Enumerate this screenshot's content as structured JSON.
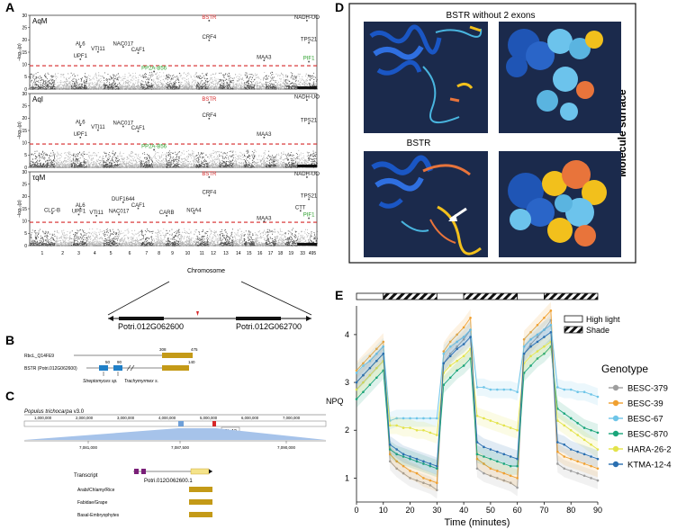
{
  "panels": {
    "A": {
      "letter": "A",
      "subplots": [
        {
          "label": "AqM",
          "ylabel": "–log₁₀(p)",
          "ylim": [
            0,
            30
          ],
          "threshold": 9.5,
          "genes": [
            {
              "name": "BSTR",
              "x": 11.1,
              "y": 28.5,
              "color": "#d62728"
            },
            {
              "name": "NADH-UO",
              "x": 19.9,
              "y": 28.5,
              "color": "#222"
            },
            {
              "name": "CRF4",
              "x": 11.1,
              "y": 20.5,
              "color": "#222"
            },
            {
              "name": "TPS21",
              "x": 20.1,
              "y": 19.5,
              "color": "#222"
            },
            {
              "name": "AL6",
              "x": 2.6,
              "y": 17.8,
              "color": "#222"
            },
            {
              "name": "VTI11",
              "x": 3.7,
              "y": 15.8,
              "color": "#222"
            },
            {
              "name": "NAC017",
              "x": 5.2,
              "y": 17.8,
              "color": "#222"
            },
            {
              "name": "CAF1",
              "x": 5.9,
              "y": 15.3,
              "color": "#222"
            },
            {
              "name": "UPF1",
              "x": 2.6,
              "y": 12.8,
              "color": "#222"
            },
            {
              "name": "MAA3",
              "x": 15.9,
              "y": 12.3,
              "color": "#222"
            },
            {
              "name": "PIF1",
              "x": 20.1,
              "y": 11.8,
              "color": "#2ca02c"
            },
            {
              "name": "PP2A-B56",
              "x": 7.1,
              "y": 7.8,
              "color": "#2ca02c"
            }
          ]
        },
        {
          "label": "AqI",
          "ylabel": "–log₁₀(p)",
          "ylim": [
            0,
            30
          ],
          "threshold": 9.5,
          "genes": [
            {
              "name": "BSTR",
              "x": 11.1,
              "y": 27.0,
              "color": "#d62728"
            },
            {
              "name": "NADH-UO",
              "x": 19.9,
              "y": 28.0,
              "color": "#222"
            },
            {
              "name": "CRF4",
              "x": 11.1,
              "y": 20.5,
              "color": "#222"
            },
            {
              "name": "TPS21",
              "x": 20.1,
              "y": 18.5,
              "color": "#222"
            },
            {
              "name": "AL6",
              "x": 2.6,
              "y": 17.8,
              "color": "#222"
            },
            {
              "name": "VTI11",
              "x": 3.7,
              "y": 15.8,
              "color": "#222"
            },
            {
              "name": "NAC017",
              "x": 5.2,
              "y": 17.3,
              "color": "#222"
            },
            {
              "name": "CAF1",
              "x": 5.9,
              "y": 15.3,
              "color": "#222"
            },
            {
              "name": "UPF1",
              "x": 2.6,
              "y": 12.8,
              "color": "#222"
            },
            {
              "name": "MAA3",
              "x": 15.9,
              "y": 12.8,
              "color": "#222"
            },
            {
              "name": "PP2A-B56",
              "x": 7.1,
              "y": 7.8,
              "color": "#2ca02c"
            }
          ]
        },
        {
          "label": "τqM",
          "ylabel": "–log₁₀(p)",
          "ylim": [
            0,
            30
          ],
          "threshold": 9.5,
          "genes": [
            {
              "name": "BSTR",
              "x": 11.1,
              "y": 28.5,
              "color": "#d62728"
            },
            {
              "name": "NADH-UO",
              "x": 19.9,
              "y": 28.5,
              "color": "#222"
            },
            {
              "name": "CRF4",
              "x": 11.1,
              "y": 21.0,
              "color": "#222"
            },
            {
              "name": "TPS21",
              "x": 20.1,
              "y": 19.5,
              "color": "#222"
            },
            {
              "name": "DUF1644",
              "x": 5.2,
              "y": 18.3,
              "color": "#222"
            },
            {
              "name": "AL6",
              "x": 2.6,
              "y": 15.8,
              "color": "#222"
            },
            {
              "name": "CAF1",
              "x": 5.9,
              "y": 15.8,
              "color": "#222"
            },
            {
              "name": "CLC-B",
              "x": 0.9,
              "y": 13.8,
              "color": "#222"
            },
            {
              "name": "UPF1",
              "x": 2.5,
              "y": 13.3,
              "color": "#222"
            },
            {
              "name": "VTI11",
              "x": 3.6,
              "y": 12.8,
              "color": "#222"
            },
            {
              "name": "NAC017",
              "x": 5.0,
              "y": 13.3,
              "color": "#222"
            },
            {
              "name": "CARB",
              "x": 8.1,
              "y": 12.8,
              "color": "#222"
            },
            {
              "name": "NGA4",
              "x": 9.9,
              "y": 13.8,
              "color": "#222"
            },
            {
              "name": "CTT",
              "x": 19.3,
              "y": 14.8,
              "color": "#222"
            },
            {
              "name": "PIF1",
              "x": 20.1,
              "y": 11.8,
              "color": "#2ca02c"
            },
            {
              "name": "MAA3",
              "x": 15.9,
              "y": 10.5,
              "color": "#222"
            }
          ]
        }
      ],
      "chromosome_ticks": [
        "1",
        "2",
        "3",
        "4",
        "5",
        "6",
        "7",
        "8",
        "9",
        "10",
        "11",
        "12",
        "13",
        "14",
        "15",
        "16",
        "17",
        "18",
        "19",
        "33",
        "495"
      ],
      "xlabel": "Chromosome",
      "yticks": [
        "0",
        "5",
        "10",
        "15",
        "20",
        "25",
        "30"
      ]
    },
    "zoom": {
      "gene1": "Potri.012G062600",
      "gene2": "Potri.012G062700"
    },
    "B": {
      "letter": "B",
      "row1_label": "RbcL_Q14FE9",
      "row2_label": "BSTR (Potri.012G062600)",
      "row1_start": "308",
      "row1_end": "475",
      "row2_mark1": "50",
      "row2_mark2": "90",
      "row2_end": "140",
      "source1": "Streptomyces sp.",
      "source2": "Trachymyrmex s."
    },
    "C": {
      "letter": "C",
      "genome_prefix": "Populus trichocarpa",
      "genome_version": " v3.0",
      "top_ticks": [
        "1,000,000",
        "2,000,000",
        "3,000,000",
        "4,000,000",
        "5,000,000",
        "6,000,000",
        "7,000,000"
      ],
      "chr_label": "Chr12",
      "zoom_ticks": [
        "7,081,000",
        "7,087,500",
        "7,090,000"
      ],
      "transcript_label": "Transcript",
      "gene_model": "Potri.012G062600.1",
      "groups": [
        "Arabi/Chlamy/Rice",
        "Fabidae/Grape",
        "Basal-Embryophytes"
      ]
    },
    "D": {
      "letter": "D",
      "title_top": "BSTR without 2 exons",
      "title_bottom": "BSTR",
      "side_label": "Molecule surface"
    },
    "E": {
      "letter": "E",
      "chart_data": {
        "type": "line",
        "x": [
          0,
          2.5,
          5,
          7.5,
          10,
          12.5,
          15,
          17.5,
          20,
          22.5,
          25,
          27.5,
          30,
          32.5,
          35,
          37.5,
          40,
          42.5,
          45,
          47.5,
          50,
          52.5,
          55,
          57.5,
          60,
          62.5,
          65,
          67.5,
          70,
          72.5,
          75,
          77.5,
          80,
          82.5,
          85,
          87.5,
          90
        ],
        "xlabel": "Time (minutes)",
        "ylabel": "NPQ",
        "xlim": [
          0,
          90
        ],
        "ylim": [
          0.5,
          4.6
        ],
        "xticks": [
          0,
          10,
          20,
          30,
          40,
          50,
          60,
          70,
          80,
          90
        ],
        "yticks": [
          1,
          2,
          3,
          4
        ],
        "light_blocks": [
          {
            "start": 0,
            "end": 10,
            "type": "high"
          },
          {
            "start": 10,
            "end": 30,
            "type": "shade"
          },
          {
            "start": 30,
            "end": 40,
            "type": "high"
          },
          {
            "start": 40,
            "end": 60,
            "type": "shade"
          },
          {
            "start": 60,
            "end": 70,
            "type": "high"
          },
          {
            "start": 70,
            "end": 90,
            "type": "shade"
          }
        ],
        "light_legend": [
          "High light",
          "Shade"
        ],
        "legend_title": "Genotype",
        "series": [
          {
            "name": "BESC-379",
            "color": "#9e9e9e",
            "values": [
              3.0,
              3.15,
              3.3,
              3.45,
              3.6,
              1.35,
              1.2,
              1.1,
              1.0,
              0.95,
              0.9,
              0.85,
              0.75,
              3.4,
              3.6,
              3.75,
              3.9,
              4.1,
              1.2,
              1.1,
              1.05,
              1.0,
              0.95,
              0.9,
              0.8,
              3.6,
              3.8,
              3.95,
              4.1,
              4.3,
              1.3,
              1.2,
              1.15,
              1.1,
              1.05,
              1.0,
              0.95
            ]
          },
          {
            "name": "BESC-39",
            "color": "#f0a030",
            "values": [
              3.25,
              3.4,
              3.55,
              3.7,
              3.85,
              1.5,
              1.35,
              1.25,
              1.15,
              1.1,
              1.0,
              0.95,
              0.9,
              3.65,
              3.85,
              4.0,
              4.15,
              4.35,
              1.4,
              1.3,
              1.2,
              1.15,
              1.1,
              1.05,
              1.0,
              3.9,
              4.05,
              4.2,
              4.35,
              4.5,
              1.55,
              1.45,
              1.4,
              1.35,
              1.3,
              1.25,
              1.2
            ]
          },
          {
            "name": "BESC-67",
            "color": "#6ec5e8",
            "values": [
              3.2,
              3.35,
              3.45,
              3.6,
              3.75,
              2.2,
              2.25,
              2.25,
              2.25,
              2.25,
              2.25,
              2.25,
              2.25,
              3.6,
              3.75,
              3.85,
              3.95,
              4.1,
              2.9,
              2.9,
              2.85,
              2.85,
              2.85,
              2.85,
              2.8,
              3.75,
              3.9,
              4.0,
              4.1,
              4.2,
              2.9,
              2.85,
              2.85,
              2.8,
              2.8,
              2.75,
              2.7
            ]
          },
          {
            "name": "BESC-870",
            "color": "#1aa57a",
            "values": [
              2.65,
              2.8,
              2.95,
              3.1,
              3.25,
              1.6,
              1.5,
              1.45,
              1.4,
              1.35,
              1.3,
              1.25,
              1.2,
              2.95,
              3.1,
              3.25,
              3.35,
              3.5,
              1.5,
              1.45,
              1.4,
              1.35,
              1.3,
              1.25,
              1.25,
              3.2,
              3.35,
              3.5,
              3.6,
              3.75,
              2.45,
              2.35,
              2.25,
              2.15,
              2.05,
              2.0,
              1.95
            ]
          },
          {
            "name": "HARA-26-2",
            "color": "#e3e34a",
            "values": [
              2.85,
              3.0,
              3.15,
              3.3,
              3.45,
              2.1,
              2.1,
              2.05,
              2.05,
              2.0,
              2.0,
              1.95,
              1.9,
              3.2,
              3.35,
              3.45,
              3.55,
              3.7,
              2.3,
              2.25,
              2.2,
              2.15,
              2.1,
              2.05,
              2.0,
              3.4,
              3.55,
              3.65,
              3.75,
              3.85,
              2.2,
              2.1,
              2.0,
              1.9,
              1.8,
              1.7,
              1.6
            ]
          },
          {
            "name": "KTMA-12-4",
            "color": "#2a6fb0",
            "values": [
              3.0,
              3.15,
              3.3,
              3.45,
              3.6,
              1.7,
              1.6,
              1.5,
              1.45,
              1.4,
              1.35,
              1.3,
              1.25,
              3.4,
              3.55,
              3.7,
              3.8,
              3.95,
              1.75,
              1.65,
              1.6,
              1.55,
              1.5,
              1.45,
              1.4,
              3.6,
              3.75,
              3.85,
              3.95,
              4.05,
              1.75,
              1.7,
              1.6,
              1.55,
              1.5,
              1.45,
              1.4
            ]
          }
        ]
      }
    }
  }
}
